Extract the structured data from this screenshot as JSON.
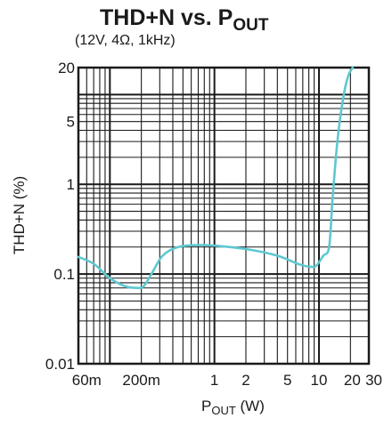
{
  "chart_data": {
    "type": "line",
    "title_main": "THD+N vs. P",
    "title_sub_script": "OUT",
    "subtitle": "(12V, 4Ω, 1kHz)",
    "ylabel": "THD+N (%)",
    "xlabel_main": "P",
    "xlabel_sub_script": "OUT",
    "xlabel_unit": " (W)",
    "x_scale": "log",
    "y_scale": "log",
    "xlim": [
      0.05,
      30
    ],
    "ylim": [
      0.01,
      20
    ],
    "x_ticks": [
      {
        "value": 0.06,
        "label": "60m"
      },
      {
        "value": 0.2,
        "label": "200m"
      },
      {
        "value": 1,
        "label": "1"
      },
      {
        "value": 2,
        "label": "2"
      },
      {
        "value": 5,
        "label": "5"
      },
      {
        "value": 10,
        "label": "10"
      },
      {
        "value": 20,
        "label": "20"
      },
      {
        "value": 30,
        "label": "30"
      }
    ],
    "y_ticks": [
      {
        "value": 0.01,
        "label": "0.01"
      },
      {
        "value": 0.1,
        "label": "0.1"
      },
      {
        "value": 1,
        "label": "1"
      },
      {
        "value": 5,
        "label": "5"
      },
      {
        "value": 20,
        "label": "20"
      }
    ],
    "grid": true,
    "line_color": "#5ec8d0",
    "series": [
      {
        "x": [
          0.05,
          0.07,
          0.1,
          0.14,
          0.18,
          0.21,
          0.25,
          0.32,
          0.45,
          0.7,
          1.0,
          2.0,
          4.0,
          6.5,
          8.5,
          9.5,
          11.0,
          12.5,
          13.5,
          15.0,
          17.0,
          19.0,
          21.0
        ],
        "y": [
          0.155,
          0.13,
          0.09,
          0.073,
          0.07,
          0.073,
          0.1,
          0.16,
          0.2,
          0.21,
          0.207,
          0.19,
          0.16,
          0.128,
          0.12,
          0.125,
          0.16,
          0.2,
          0.7,
          3.0,
          9.0,
          16.0,
          20.0
        ]
      }
    ]
  }
}
